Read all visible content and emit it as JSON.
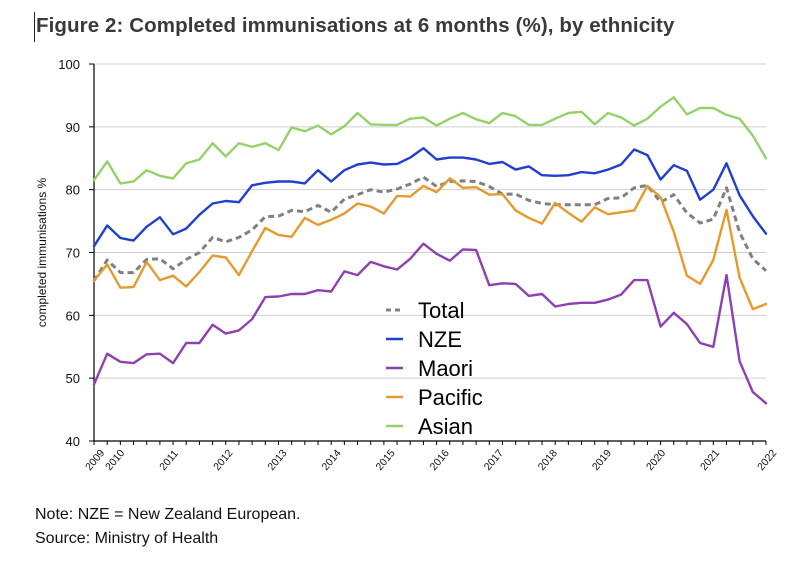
{
  "figure": {
    "title": "Figure 2: Completed immunisations at 6 months (%), by ethnicity",
    "note": "Note: NZE = New Zealand European.",
    "source": "Source: Ministry of Health"
  },
  "chart_data": {
    "type": "line",
    "title": "Figure 2: Completed immunisations at 6 months (%), by ethnicity",
    "xlabel": "",
    "ylabel": "completed immunisations %",
    "ylim": [
      40,
      100
    ],
    "yticks": [
      40,
      50,
      60,
      70,
      80,
      90,
      100
    ],
    "grid": true,
    "legend_position": "center-bottom (inside plot)",
    "x_tick_labels": [
      {
        "label": "2009",
        "index": 0
      },
      {
        "label": "2010",
        "index": 1.5
      },
      {
        "label": "2011",
        "index": 6
      },
      {
        "label": "2012",
        "index": 10.5
      },
      {
        "label": "2013",
        "index": 15
      },
      {
        "label": "2014",
        "index": 19.5
      },
      {
        "label": "2015",
        "index": 24
      },
      {
        "label": "2016",
        "index": 28.5
      },
      {
        "label": "2017",
        "index": 33
      },
      {
        "label": "2018",
        "index": 37.5
      },
      {
        "label": "2019",
        "index": 42
      },
      {
        "label": "2020",
        "index": 46.5
      },
      {
        "label": "2021",
        "index": 51
      },
      {
        "label": "2022",
        "index": 51
      }
    ],
    "n_points": 52,
    "series": [
      {
        "name": "Total",
        "color": "#808080",
        "dashed": true,
        "values": [
          65.5,
          68.8,
          66.8,
          66.8,
          68.9,
          69.0,
          67.4,
          68.9,
          70.0,
          72.4,
          71.7,
          72.4,
          73.6,
          75.7,
          75.8,
          76.7,
          76.5,
          77.5,
          76.4,
          78.5,
          79.2,
          80.0,
          79.6,
          80.1,
          80.9,
          82.0,
          80.5,
          81.3,
          81.4,
          81.3,
          80.5,
          79.3,
          79.3,
          78.3,
          77.8,
          77.6,
          77.6,
          77.6,
          77.6,
          78.6,
          78.7,
          80.3,
          80.7,
          78.0,
          79.2,
          76.3,
          74.7,
          75.3,
          80.3,
          73.2,
          69.0,
          67.1
        ]
      },
      {
        "name": "NZE",
        "color": "#1f3fd0",
        "dashed": false,
        "values": [
          71.0,
          74.3,
          72.3,
          71.9,
          74.1,
          75.6,
          72.9,
          73.8,
          76.0,
          77.8,
          78.2,
          78.0,
          80.7,
          81.1,
          81.3,
          81.3,
          81.0,
          83.1,
          81.3,
          83.1,
          84.0,
          84.3,
          84.0,
          84.1,
          85.1,
          86.6,
          84.8,
          85.1,
          85.1,
          84.8,
          84.1,
          84.4,
          83.2,
          83.7,
          82.3,
          82.2,
          82.3,
          82.8,
          82.6,
          83.2,
          84.0,
          86.4,
          85.5,
          81.6,
          83.9,
          83.0,
          78.4,
          80.0,
          84.2,
          79.1,
          75.8,
          73.0
        ]
      },
      {
        "name": "Maori",
        "color": "#8e3fb0",
        "dashed": false,
        "values": [
          49.0,
          53.9,
          52.6,
          52.4,
          53.8,
          53.9,
          52.4,
          55.6,
          55.6,
          58.5,
          57.1,
          57.6,
          59.4,
          62.9,
          63.0,
          63.4,
          63.4,
          64.0,
          63.8,
          67.0,
          66.4,
          68.5,
          67.8,
          67.3,
          69.0,
          71.4,
          69.8,
          68.7,
          70.5,
          70.4,
          64.8,
          65.1,
          65.0,
          63.1,
          63.4,
          61.4,
          61.8,
          62.0,
          62.0,
          62.5,
          63.3,
          65.6,
          65.6,
          58.2,
          60.4,
          58.6,
          55.6,
          55.0,
          66.4,
          52.7,
          47.8,
          46.0
        ]
      },
      {
        "name": "Pacific",
        "color": "#e69a2e",
        "dashed": false,
        "values": [
          65.5,
          68.1,
          64.4,
          64.5,
          68.5,
          65.6,
          66.3,
          64.6,
          66.9,
          69.5,
          69.2,
          66.4,
          70.2,
          73.9,
          72.8,
          72.5,
          75.5,
          74.4,
          75.2,
          76.2,
          77.8,
          77.3,
          76.2,
          79.0,
          78.9,
          80.6,
          79.6,
          81.8,
          80.3,
          80.4,
          79.2,
          79.3,
          76.7,
          75.5,
          74.6,
          77.9,
          76.3,
          74.9,
          77.2,
          76.1,
          76.4,
          76.7,
          80.6,
          78.8,
          73.3,
          66.3,
          65.0,
          68.8,
          76.8,
          66.0,
          61.0,
          61.8
        ]
      },
      {
        "name": "Asian",
        "color": "#95d16a",
        "dashed": false,
        "values": [
          81.5,
          84.5,
          81.0,
          81.3,
          83.1,
          82.2,
          81.8,
          84.2,
          84.8,
          87.4,
          85.3,
          87.4,
          86.8,
          87.4,
          86.3,
          89.9,
          89.3,
          90.2,
          88.8,
          90.1,
          92.2,
          90.4,
          90.3,
          90.3,
          91.3,
          91.5,
          90.2,
          91.3,
          92.2,
          91.2,
          90.6,
          92.2,
          91.7,
          90.3,
          90.3,
          91.3,
          92.2,
          92.4,
          90.4,
          92.2,
          91.5,
          90.2,
          91.3,
          93.2,
          94.7,
          92.0,
          93.0,
          93.0,
          91.9,
          91.3,
          88.6,
          85.0
        ]
      }
    ]
  }
}
